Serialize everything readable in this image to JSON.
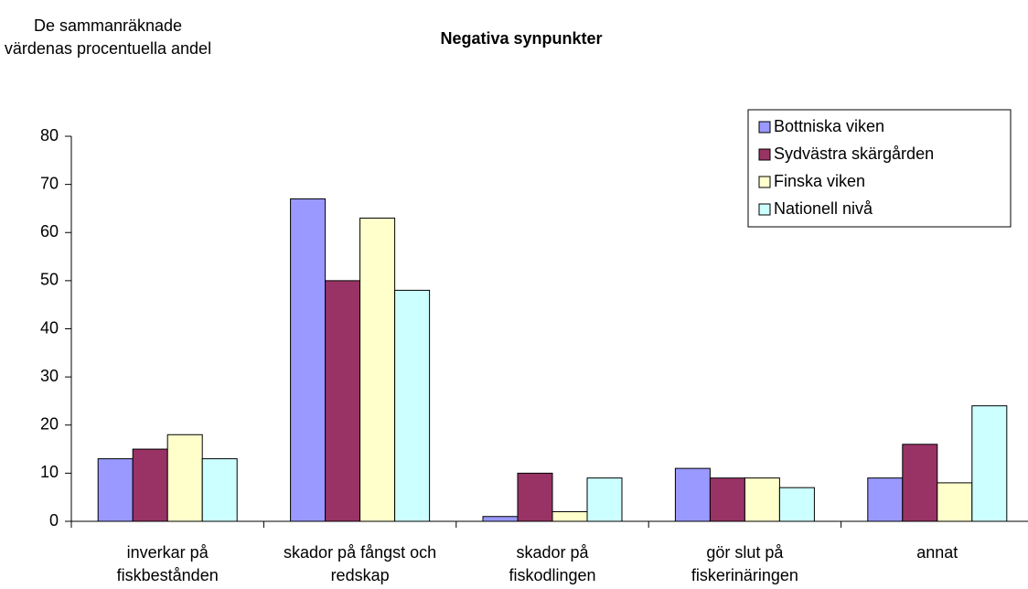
{
  "chart_data": {
    "type": "bar",
    "title": "Negativa synpunkter",
    "ylabel": "De sammanräknade värdenas procentuella andel",
    "categories": [
      "inverkar på fiskbestånden",
      "skador på fångst och redskap",
      "skador på fiskodlingen",
      "gör slut på fiskerinäringen",
      "annat"
    ],
    "series": [
      {
        "name": "Bottniska viken",
        "color": "#9999ff",
        "values": [
          13,
          67,
          1,
          11,
          9
        ]
      },
      {
        "name": "Sydvästra skärgården",
        "color": "#993366",
        "values": [
          15,
          50,
          10,
          9,
          16
        ]
      },
      {
        "name": "Finska viken",
        "color": "#ffffcc",
        "values": [
          18,
          63,
          2,
          9,
          8
        ]
      },
      {
        "name": "Nationell nivå",
        "color": "#ccffff",
        "values": [
          13,
          48,
          9,
          7,
          24
        ]
      }
    ],
    "ylim": [
      0,
      80
    ],
    "yticks": [
      0,
      10,
      20,
      30,
      40,
      50,
      60,
      70,
      80
    ],
    "grid": false,
    "legend": "upper right"
  }
}
